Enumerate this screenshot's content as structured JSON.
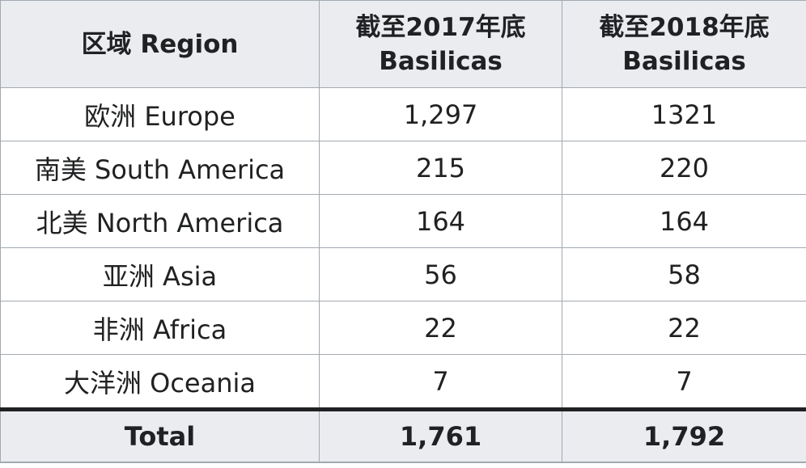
{
  "table": {
    "headers": [
      {
        "line1": "区域 Region",
        "line2": ""
      },
      {
        "line1": "截至2017年底",
        "line2": "Basilicas"
      },
      {
        "line1": "截至2018年底",
        "line2": "Basilicas"
      }
    ],
    "rows": [
      {
        "region": "欧洲 Europe",
        "y2017": "1,297",
        "y2018": "1321"
      },
      {
        "region": "南美 South America",
        "y2017": "215",
        "y2018": "220"
      },
      {
        "region": "北美 North America",
        "y2017": "164",
        "y2018": "164"
      },
      {
        "region": "亚洲 Asia",
        "y2017": "56",
        "y2018": "58"
      },
      {
        "region": "非洲 Africa",
        "y2017": "22",
        "y2018": "22"
      },
      {
        "region": "大洋洲 Oceania",
        "y2017": "7",
        "y2018": "7"
      }
    ],
    "total": {
      "label": "Total",
      "y2017": "1,761",
      "y2018": "1,792"
    }
  },
  "colors": {
    "header_bg": "#eaecf0",
    "border": "#a2a9b1",
    "text": "#202122"
  }
}
